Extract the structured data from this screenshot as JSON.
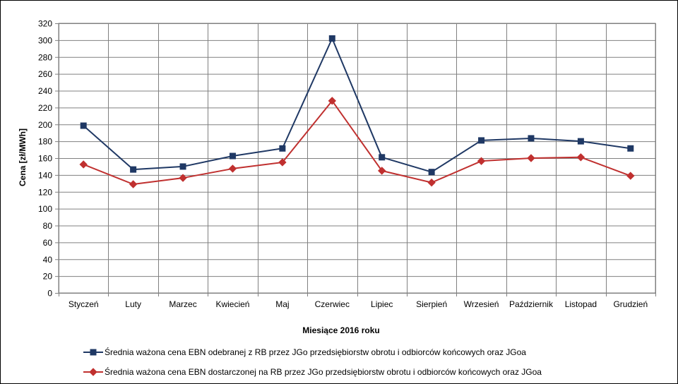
{
  "chart_data": {
    "type": "line",
    "title": "",
    "xlabel": "Miesiące 2016  roku",
    "ylabel": "Cena [zł/MWh]",
    "ylim": [
      0,
      320
    ],
    "ytick_step": 20,
    "grid": true,
    "legend_position": "bottom",
    "categories": [
      "Styczeń",
      "Luty",
      "Marzec",
      "Kwiecień",
      "Maj",
      "Czerwiec",
      "Lipiec",
      "Sierpień",
      "Wrzesień",
      "Październik",
      "Listopad",
      "Grudzień"
    ],
    "series": [
      {
        "name": "Średnia ważona cena EBN odebranej z RB przez JGo przedsiębiorstw obrotu i odbiorców końcowych oraz JGoa",
        "color": "#1f3864",
        "marker": "square",
        "values": [
          198.5,
          146.5,
          150,
          162.5,
          171.5,
          302,
          161,
          143.5,
          181,
          183.5,
          180,
          171.5
        ]
      },
      {
        "name": "Średnia ważona cena EBN dostarczonej na RB przez JGo przedsiębiorstw obrotu i odbiorców końcowych oraz JGoa",
        "color": "#c0302f",
        "marker": "diamond",
        "values": [
          152.5,
          129,
          136.5,
          147.5,
          155,
          228,
          145,
          131,
          156.5,
          160,
          161,
          139
        ]
      }
    ]
  }
}
